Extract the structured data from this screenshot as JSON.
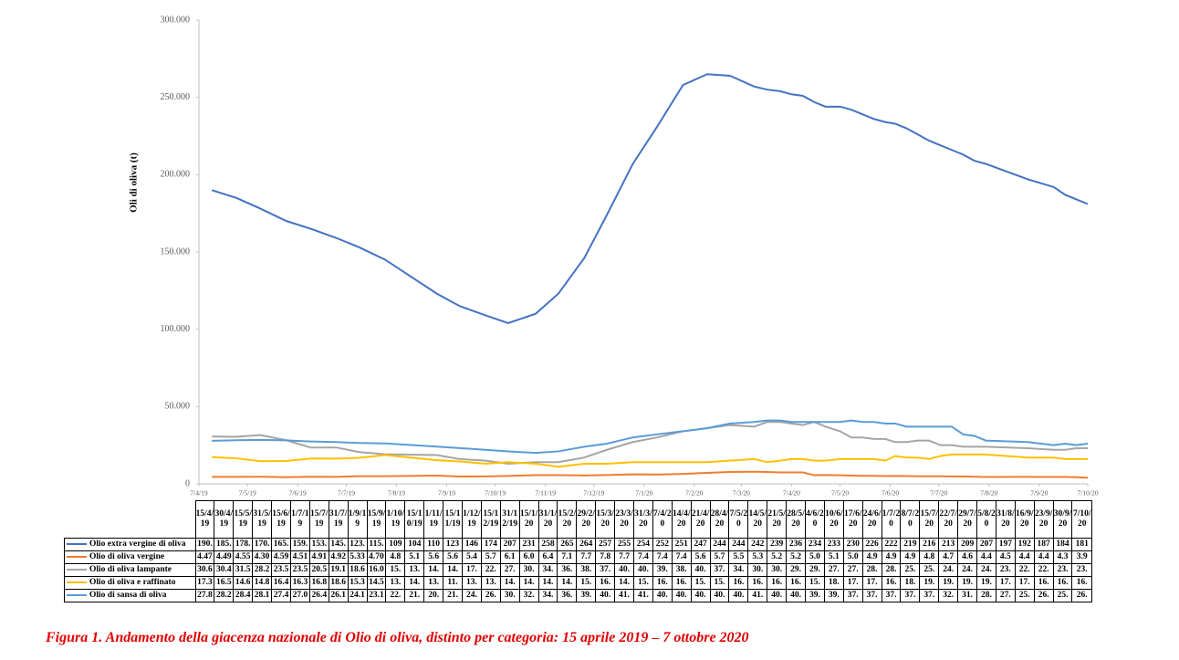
{
  "chart_data": {
    "type": "line",
    "y_label": "Oli di oliva (t)",
    "caption": "Figura 1. Andamento della giacenza nazionale di Olio di oliva, distinto per categoria: 15 aprile 2019 – 7 ottobre 2020",
    "x": [
      "15/4/19",
      "30/4/19",
      "15/5/19",
      "31/5/19",
      "15/6/19",
      "1/7/19",
      "15/7/19",
      "31/7/19",
      "1/9/19",
      "15/9/19",
      "1/10/19",
      "15/10/19",
      "1/11/19",
      "15/11/19",
      "1/12/19",
      "15/12/19",
      "31/12/19",
      "15/1/20",
      "31/1/20",
      "15/2/20",
      "29/2/20",
      "15/3/20",
      "23/3/20",
      "31/3/20",
      "7/4/20",
      "14/4/20",
      "21/4/20",
      "28/4/20",
      "7/5/20",
      "14/5/20",
      "21/5/20",
      "28/5/20",
      "4/6/20",
      "10/6/20",
      "17/6/20",
      "24/6/20",
      "1/7/20",
      "8/7/20",
      "15/7/20",
      "22/7/20",
      "29/7/20",
      "5/8/20",
      "31/8/20",
      "16/9/20",
      "23/9/20",
      "30/9/20",
      "7/10/20"
    ],
    "xlim": [
      "7/4/19",
      "7/10/20"
    ],
    "xticks": [
      "7/4/19",
      "7/5/19",
      "7/6/19",
      "7/7/19",
      "7/8/19",
      "7/9/19",
      "7/10/19",
      "7/11/19",
      "7/12/19",
      "7/1/20",
      "7/2/20",
      "7/3/20",
      "7/4/20",
      "7/5/20",
      "7/6/20",
      "7/7/20",
      "7/8/20",
      "7/9/20",
      "7/10/20"
    ],
    "ylim": [
      0,
      300000
    ],
    "yticks": [
      0,
      {
        "value": 50000,
        "label": "50.000"
      },
      {
        "value": 100000,
        "label": "100.000"
      },
      {
        "value": 150000,
        "label": "150.000"
      },
      {
        "value": 200000,
        "label": "200.000"
      },
      {
        "value": 250000,
        "label": "250.000"
      },
      {
        "value": 300000,
        "label": "300.000"
      }
    ],
    "grid": false,
    "series": [
      {
        "name": "Olio extra vergine di oliva",
        "color": "#4472c4",
        "values": [
          190000,
          185000,
          178000,
          170000,
          165000,
          159000,
          153000,
          145000,
          123000,
          115000,
          109000,
          104000,
          110000,
          123000,
          146000,
          174000,
          207000,
          231000,
          258000,
          265000,
          264000,
          257000,
          255000,
          254000,
          252000,
          251000,
          247000,
          244000,
          244000,
          242000,
          239000,
          236000,
          234000,
          233000,
          230000,
          226000,
          222000,
          219000,
          216000,
          213000,
          209000,
          207000,
          197000,
          192000,
          187000,
          184000,
          181000
        ],
        "value_labels": [
          "190.",
          "185.",
          "178.",
          "170.",
          "165.",
          "159.",
          "153.",
          "145.",
          "123.",
          "115.",
          "109",
          "104",
          "110",
          "123",
          "146",
          "174",
          "207",
          "231",
          "258",
          "265",
          "264",
          "257",
          "255",
          "254",
          "252",
          "251",
          "247",
          "244",
          "244",
          "242",
          "239",
          "236",
          "234",
          "233",
          "230",
          "226",
          "222",
          "219",
          "216",
          "213",
          "209",
          "207",
          "197",
          "192",
          "187",
          "184",
          "181"
        ]
      },
      {
        "name": "Olio di oliva vergine",
        "color": "#ed7d31",
        "values": [
          4470,
          4490,
          4550,
          4300,
          4590,
          4510,
          4910,
          4920,
          5330,
          4700,
          4800,
          5100,
          5600,
          5600,
          5400,
          5700,
          6100,
          6000,
          6400,
          7100,
          7700,
          7800,
          7700,
          7400,
          7400,
          7400,
          5600,
          5700,
          5500,
          5300,
          5200,
          5200,
          5000,
          5100,
          5000,
          4900,
          4900,
          4900,
          4800,
          4700,
          4600,
          4400,
          4500,
          4400,
          4400,
          4300,
          3900
        ],
        "value_labels": [
          "4.47",
          "4.49",
          "4.55",
          "4.30",
          "4.59",
          "4.51",
          "4.91",
          "4.92",
          "5.33",
          "4.70",
          "4.8",
          "5.1",
          "5.6",
          "5.6",
          "5.4",
          "5.7",
          "6.1",
          "6.0",
          "6.4",
          "7.1",
          "7.7",
          "7.8",
          "7.7",
          "7.4",
          "7.4",
          "7.4",
          "5.6",
          "5.7",
          "5.5",
          "5.3",
          "5.2",
          "5.2",
          "5.0",
          "5.1",
          "5.0",
          "4.9",
          "4.9",
          "4.9",
          "4.8",
          "4.7",
          "4.6",
          "4.4",
          "4.5",
          "4.4",
          "4.4",
          "4.3",
          "3.9"
        ]
      },
      {
        "name": "Olio di oliva lampante",
        "color": "#a5a5a5",
        "values": [
          30600,
          30400,
          31500,
          28200,
          23500,
          23500,
          20500,
          19100,
          18600,
          16000,
          15000,
          13000,
          14000,
          14000,
          17000,
          22000,
          27000,
          30000,
          34000,
          36000,
          38000,
          37000,
          40000,
          40000,
          39000,
          38000,
          40000,
          37000,
          34000,
          30000,
          30000,
          29000,
          29000,
          27000,
          27000,
          28000,
          28000,
          25000,
          25000,
          24000,
          24000,
          24000,
          23000,
          22000,
          22000,
          23000,
          23000
        ],
        "value_labels": [
          "30.6",
          "30.4",
          "31.5",
          "28.2",
          "23.5",
          "23.5",
          "20.5",
          "19.1",
          "18.6",
          "16.0",
          "15.",
          "13.",
          "14.",
          "14.",
          "17.",
          "22.",
          "27.",
          "30.",
          "34.",
          "36.",
          "38.",
          "37.",
          "40.",
          "40.",
          "39.",
          "38.",
          "40.",
          "37.",
          "34.",
          "30.",
          "30.",
          "29.",
          "29.",
          "27.",
          "27.",
          "28.",
          "28.",
          "25.",
          "25.",
          "24.",
          "24.",
          "24.",
          "23.",
          "22.",
          "22.",
          "23.",
          "23."
        ]
      },
      {
        "name": "Olio di oliva e raffinato",
        "color": "#ffc000",
        "values": [
          17300,
          16500,
          14600,
          14800,
          16400,
          16300,
          16800,
          18600,
          15300,
          14500,
          13000,
          14000,
          13000,
          11000,
          13000,
          13000,
          14000,
          14000,
          14000,
          14000,
          15000,
          16000,
          14000,
          15000,
          16000,
          16000,
          15000,
          15000,
          16000,
          16000,
          16000,
          16000,
          15000,
          18000,
          17000,
          17000,
          16000,
          18000,
          19000,
          19000,
          19000,
          19000,
          17000,
          17000,
          16000,
          16000,
          16000
        ],
        "value_labels": [
          "17.3",
          "16.5",
          "14.6",
          "14.8",
          "16.4",
          "16.3",
          "16.8",
          "18.6",
          "15.3",
          "14.5",
          "13.",
          "14.",
          "13.",
          "11.",
          "13.",
          "13.",
          "14.",
          "14.",
          "14.",
          "14.",
          "15.",
          "16.",
          "14.",
          "15.",
          "16.",
          "16.",
          "15.",
          "15.",
          "16.",
          "16.",
          "16.",
          "16.",
          "15.",
          "18.",
          "17.",
          "17.",
          "16.",
          "18.",
          "19.",
          "19.",
          "19.",
          "19.",
          "17.",
          "17.",
          "16.",
          "16.",
          "16."
        ]
      },
      {
        "name": "Olio di sansa di oliva",
        "color": "#5b9bd5",
        "values": [
          27800,
          28200,
          28400,
          28100,
          27400,
          27000,
          26400,
          26100,
          24100,
          23100,
          22000,
          21000,
          20000,
          21000,
          24000,
          26000,
          30000,
          32000,
          34000,
          36000,
          39000,
          40000,
          41000,
          41000,
          40000,
          40000,
          40000,
          40000,
          40000,
          41000,
          40000,
          40000,
          39000,
          39000,
          37000,
          37000,
          37000,
          37000,
          37000,
          32000,
          31000,
          28000,
          27000,
          25000,
          26000,
          25000,
          26000
        ],
        "value_labels": [
          "27.8",
          "28.2",
          "28.4",
          "28.1",
          "27.4",
          "27.0",
          "26.4",
          "26.1",
          "24.1",
          "23.1",
          "22.",
          "21.",
          "20.",
          "21.",
          "24.",
          "26.",
          "30.",
          "32.",
          "34.",
          "36.",
          "39.",
          "40.",
          "41.",
          "41.",
          "40.",
          "40.",
          "40.",
          "40.",
          "40.",
          "41.",
          "40.",
          "40.",
          "39.",
          "39.",
          "37.",
          "37.",
          "37.",
          "37.",
          "37.",
          "32.",
          "31.",
          "28.",
          "27.",
          "25.",
          "26.",
          "25.",
          "26."
        ]
      }
    ]
  }
}
